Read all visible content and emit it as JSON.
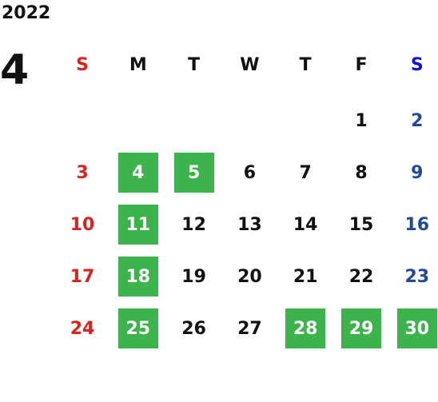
{
  "year": "2022",
  "month": "4",
  "weekdays": [
    "S",
    "M",
    "T",
    "W",
    "T",
    "F",
    "S"
  ],
  "weeks": [
    [
      null,
      null,
      null,
      null,
      null,
      {
        "day": "1",
        "highlight": false
      },
      {
        "day": "2",
        "highlight": false
      }
    ],
    [
      {
        "day": "3",
        "highlight": false
      },
      {
        "day": "4",
        "highlight": true
      },
      {
        "day": "5",
        "highlight": true
      },
      {
        "day": "6",
        "highlight": false
      },
      {
        "day": "7",
        "highlight": false
      },
      {
        "day": "8",
        "highlight": false
      },
      {
        "day": "9",
        "highlight": false
      }
    ],
    [
      {
        "day": "10",
        "highlight": false
      },
      {
        "day": "11",
        "highlight": true
      },
      {
        "day": "12",
        "highlight": false
      },
      {
        "day": "13",
        "highlight": false
      },
      {
        "day": "14",
        "highlight": false
      },
      {
        "day": "15",
        "highlight": false
      },
      {
        "day": "16",
        "highlight": false
      }
    ],
    [
      {
        "day": "17",
        "highlight": false
      },
      {
        "day": "18",
        "highlight": true
      },
      {
        "day": "19",
        "highlight": false
      },
      {
        "day": "20",
        "highlight": false
      },
      {
        "day": "21",
        "highlight": false
      },
      {
        "day": "22",
        "highlight": false
      },
      {
        "day": "23",
        "highlight": false
      }
    ],
    [
      {
        "day": "24",
        "highlight": false
      },
      {
        "day": "25",
        "highlight": true
      },
      {
        "day": "26",
        "highlight": false
      },
      {
        "day": "27",
        "highlight": false
      },
      {
        "day": "28",
        "highlight": true
      },
      {
        "day": "29",
        "highlight": true
      },
      {
        "day": "30",
        "highlight": true
      }
    ]
  ]
}
